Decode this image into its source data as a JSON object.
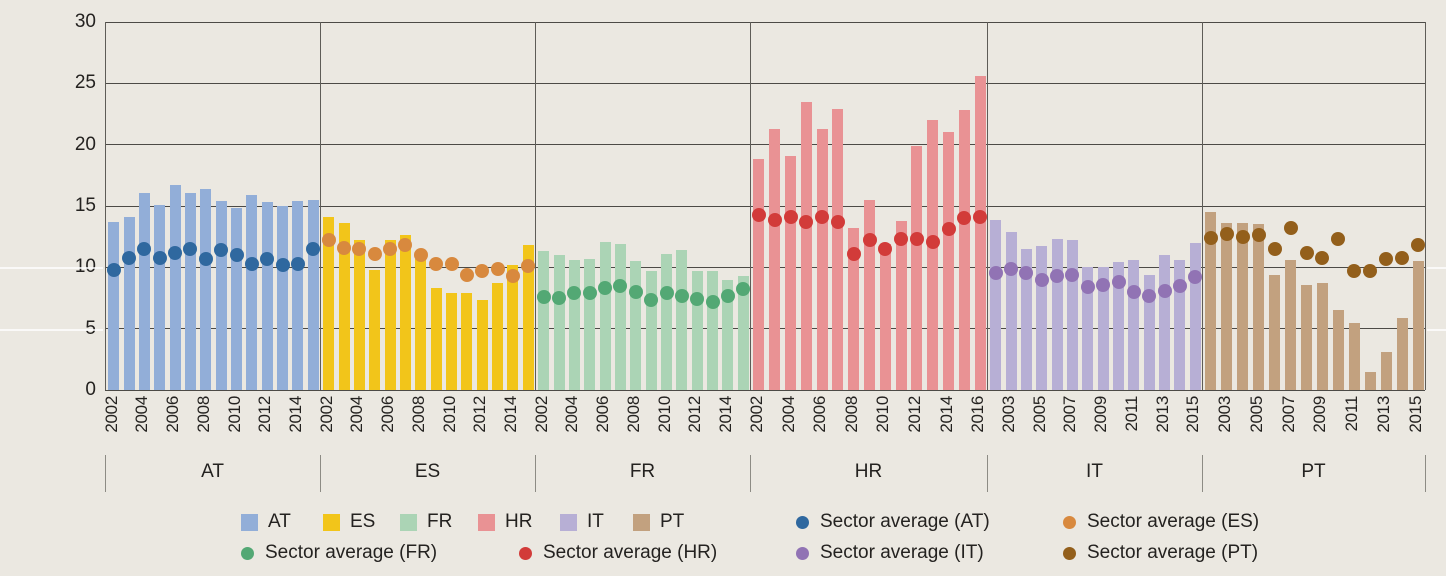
{
  "chart_data": {
    "type": "bar",
    "title": "",
    "xlabel": "",
    "ylabel": "",
    "ylim": [
      0,
      30
    ],
    "yticks": [
      0,
      5,
      10,
      15,
      20,
      25,
      30
    ],
    "grid": true,
    "legend_position": "bottom",
    "groups": [
      {
        "code": "AT",
        "years": [
          "2002",
          "2003",
          "2004",
          "2005",
          "2006",
          "2007",
          "2008",
          "2009",
          "2010",
          "2011",
          "2012",
          "2013",
          "2014",
          "2015"
        ],
        "tick_labels": [
          "2002",
          "2004",
          "2006",
          "2008",
          "2010",
          "2012",
          "2014"
        ],
        "bars": [
          13.7,
          14.1,
          16.1,
          15.1,
          16.7,
          16.1,
          16.4,
          15.4,
          14.8,
          15.9,
          15.3,
          15.0,
          15.4,
          15.5
        ],
        "avg": [
          9.8,
          10.8,
          11.5,
          10.8,
          11.2,
          11.5,
          10.7,
          11.4,
          11.0,
          10.3,
          10.7,
          10.2,
          10.3,
          11.5
        ],
        "bar_color": "#92aed8",
        "avg_color": "#2f689f"
      },
      {
        "code": "ES",
        "years": [
          "2002",
          "2003",
          "2004",
          "2005",
          "2006",
          "2007",
          "2008",
          "2009",
          "2010",
          "2011",
          "2012",
          "2013",
          "2014",
          "2015"
        ],
        "tick_labels": [
          "2002",
          "2004",
          "2006",
          "2008",
          "2010",
          "2012",
          "2014"
        ],
        "bars": [
          14.1,
          13.6,
          12.2,
          9.8,
          12.2,
          12.6,
          10.7,
          8.3,
          7.9,
          7.9,
          7.3,
          8.7,
          10.2,
          11.8
        ],
        "avg": [
          12.2,
          11.6,
          11.5,
          11.1,
          11.5,
          11.8,
          11.0,
          10.3,
          10.3,
          9.4,
          9.7,
          9.9,
          9.3,
          10.1
        ],
        "bar_color": "#f2c51a",
        "avg_color": "#d8893e"
      },
      {
        "code": "FR",
        "years": [
          "2002",
          "2003",
          "2004",
          "2005",
          "2006",
          "2007",
          "2008",
          "2009",
          "2010",
          "2011",
          "2012",
          "2013",
          "2014",
          "2015"
        ],
        "tick_labels": [
          "2002",
          "2004",
          "2006",
          "2008",
          "2010",
          "2012",
          "2014"
        ],
        "bars": [
          11.3,
          11.0,
          10.6,
          10.7,
          12.1,
          11.9,
          10.5,
          9.7,
          11.1,
          11.4,
          9.7,
          9.7,
          9.0,
          9.3
        ],
        "avg": [
          7.6,
          7.5,
          7.9,
          7.9,
          8.3,
          8.5,
          8.0,
          7.3,
          7.9,
          7.7,
          7.4,
          7.2,
          7.7,
          8.2
        ],
        "bar_color": "#abd4b5",
        "avg_color": "#53a874"
      },
      {
        "code": "HR",
        "years": [
          "2002",
          "2003",
          "2004",
          "2005",
          "2006",
          "2007",
          "2008",
          "2009",
          "2010",
          "2011",
          "2012",
          "2013",
          "2014",
          "2015",
          "2016"
        ],
        "tick_labels": [
          "2002",
          "2004",
          "2006",
          "2008",
          "2010",
          "2012",
          "2014",
          "2016"
        ],
        "bars": [
          18.8,
          21.3,
          19.1,
          23.5,
          21.3,
          22.9,
          13.2,
          15.5,
          11.9,
          13.8,
          19.9,
          22.0,
          21.0,
          22.8,
          25.6
        ],
        "avg": [
          14.3,
          13.9,
          14.1,
          13.7,
          14.1,
          13.7,
          11.1,
          12.2,
          11.5,
          12.3,
          12.3,
          12.1,
          13.1,
          14.0,
          14.1
        ],
        "bar_color": "#e99294",
        "avg_color": "#d23b39"
      },
      {
        "code": "IT",
        "years": [
          "2002",
          "2003",
          "2004",
          "2005",
          "2006",
          "2007",
          "2008",
          "2009",
          "2010",
          "2011",
          "2012",
          "2013",
          "2014",
          "2015"
        ],
        "tick_labels": [
          "2003",
          "2005",
          "2007",
          "2009",
          "2011",
          "2013",
          "2015"
        ],
        "bars": [
          13.9,
          12.9,
          11.5,
          11.7,
          12.3,
          12.2,
          10.0,
          10.0,
          10.4,
          10.6,
          9.4,
          11.0,
          10.6,
          12.0
        ],
        "avg": [
          9.5,
          9.9,
          9.5,
          9.0,
          9.3,
          9.4,
          8.4,
          8.6,
          8.8,
          8.0,
          7.7,
          8.1,
          8.5,
          9.2
        ],
        "bar_color": "#b7afd5",
        "avg_color": "#9173b4"
      },
      {
        "code": "PT",
        "years": [
          "2002",
          "2003",
          "2004",
          "2005",
          "2006",
          "2007",
          "2008",
          "2009",
          "2010",
          "2011",
          "2012",
          "2013",
          "2014",
          "2015"
        ],
        "tick_labels": [
          "2003",
          "2005",
          "2007",
          "2009",
          "2011",
          "2013",
          "2015"
        ],
        "bars": [
          14.5,
          13.6,
          13.6,
          13.5,
          9.4,
          10.6,
          8.6,
          8.7,
          6.5,
          5.5,
          1.5,
          3.1,
          5.9,
          10.5
        ],
        "avg": [
          12.4,
          12.7,
          12.5,
          12.6,
          11.5,
          13.2,
          11.2,
          10.8,
          12.3,
          9.7,
          9.7,
          10.7,
          10.8,
          11.8
        ],
        "bar_color": "#c2a17f",
        "avg_color": "#935f1b"
      }
    ],
    "legend": {
      "bar_items": [
        {
          "label": "AT",
          "color": "#92aed8"
        },
        {
          "label": "ES",
          "color": "#f2c51a"
        },
        {
          "label": "FR",
          "color": "#abd4b5"
        },
        {
          "label": "HR",
          "color": "#e99294"
        },
        {
          "label": "IT",
          "color": "#b7afd5"
        },
        {
          "label": "PT",
          "color": "#c2a17f"
        }
      ],
      "dot_items": [
        {
          "label": "Sector average (AT)",
          "color": "#2f689f"
        },
        {
          "label": "Sector average (ES)",
          "color": "#d8893e"
        },
        {
          "label": "Sector average (FR)",
          "color": "#53a874"
        },
        {
          "label": "Sector average (HR)",
          "color": "#d23b39"
        },
        {
          "label": "Sector average (IT)",
          "color": "#9173b4"
        },
        {
          "label": "Sector average (PT)",
          "color": "#935f1b"
        }
      ]
    }
  }
}
